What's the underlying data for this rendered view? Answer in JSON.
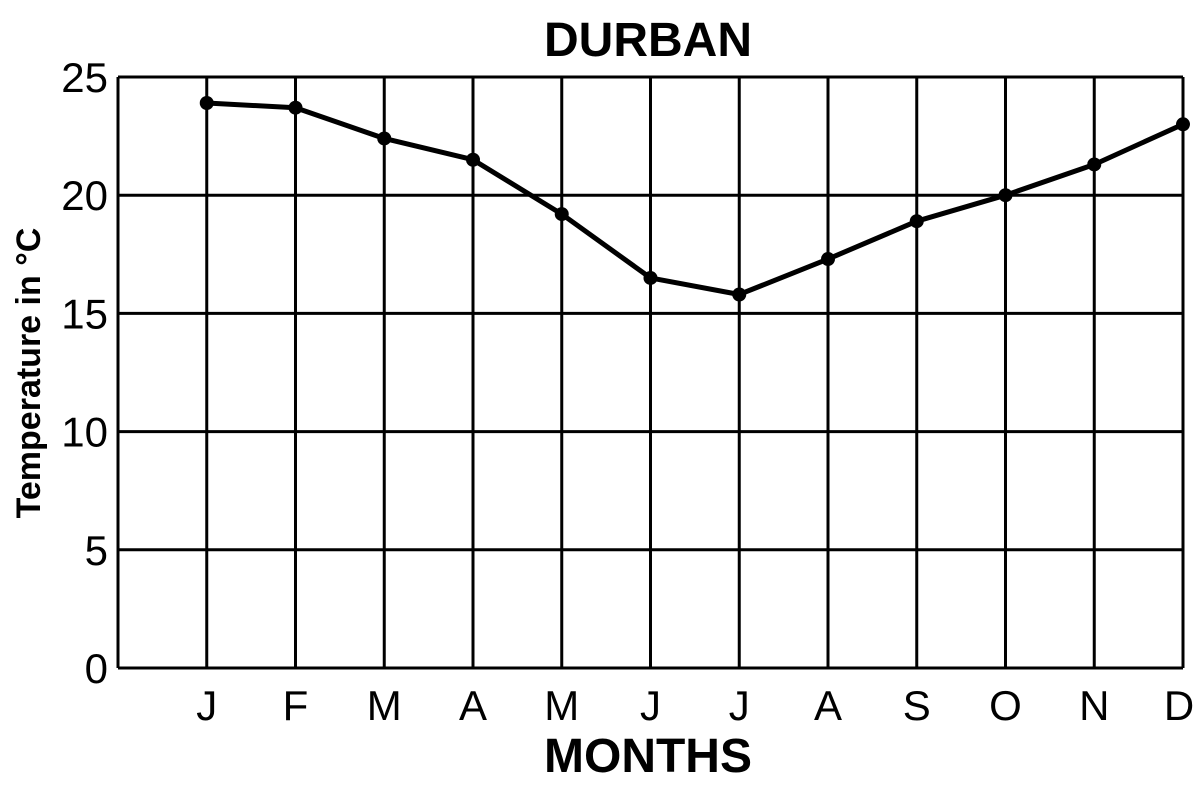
{
  "chart_data": {
    "type": "line",
    "title": "DURBAN",
    "xlabel": "MONTHS",
    "ylabel": "Temperature in °C",
    "categories": [
      "J",
      "F",
      "M",
      "A",
      "M",
      "J",
      "J",
      "A",
      "S",
      "O",
      "N",
      "D"
    ],
    "series": [
      {
        "values": [
          23.9,
          23.7,
          22.4,
          21.5,
          19.2,
          16.5,
          15.8,
          17.3,
          18.9,
          20.0,
          21.3,
          23.0
        ]
      }
    ],
    "ylim": [
      0,
      25
    ],
    "yticks": [
      "0",
      "5",
      "10",
      "15",
      "20",
      "25"
    ],
    "grid": true,
    "legend": "none",
    "colors": {
      "line": "#000000",
      "grid": "#000000",
      "background": "#ffffff"
    }
  }
}
